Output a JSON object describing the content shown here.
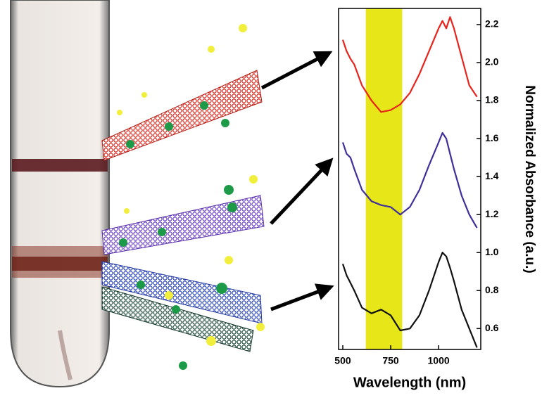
{
  "chart_data": {
    "type": "line",
    "xlabel": "Wavelength (nm)",
    "ylabel": "Normalized Absorbance (a.u.)",
    "x": [
      500,
      520,
      540,
      560,
      600,
      650,
      700,
      750,
      800,
      850,
      900,
      950,
      1000,
      1020,
      1040,
      1060,
      1080,
      1120,
      1160,
      1200
    ],
    "series": [
      {
        "color": "#e8231c",
        "values": [
          2.12,
          2.06,
          2.02,
          1.99,
          1.88,
          1.8,
          1.74,
          1.75,
          1.78,
          1.84,
          1.94,
          2.06,
          2.18,
          2.22,
          2.18,
          2.24,
          2.18,
          2.03,
          1.88,
          1.82
        ]
      },
      {
        "color": "#3f2f9a",
        "values": [
          1.58,
          1.52,
          1.5,
          1.44,
          1.33,
          1.27,
          1.25,
          1.24,
          1.2,
          1.24,
          1.33,
          1.46,
          1.58,
          1.63,
          1.6,
          1.52,
          1.44,
          1.3,
          1.2,
          1.13
        ]
      },
      {
        "color": "#111111",
        "values": [
          0.94,
          0.88,
          0.84,
          0.8,
          0.71,
          0.68,
          0.7,
          0.67,
          0.59,
          0.6,
          0.67,
          0.8,
          0.95,
          1.0,
          0.98,
          0.92,
          0.85,
          0.7,
          0.6,
          0.5
        ]
      }
    ],
    "highlight_range": [
      620,
      810
    ],
    "highlight_color": "#e6e619",
    "xlim": [
      478,
      1220
    ],
    "ylim": [
      0.49,
      2.285
    ],
    "xticks": [
      500,
      750,
      1000
    ],
    "yticks": [
      0.6,
      0.8,
      {
        "value": 1.0,
        "label": "1.0"
      },
      1.2,
      1.4,
      1.6,
      1.8,
      {
        "value": 2.0,
        "label": "2.0"
      },
      2.2
    ]
  }
}
